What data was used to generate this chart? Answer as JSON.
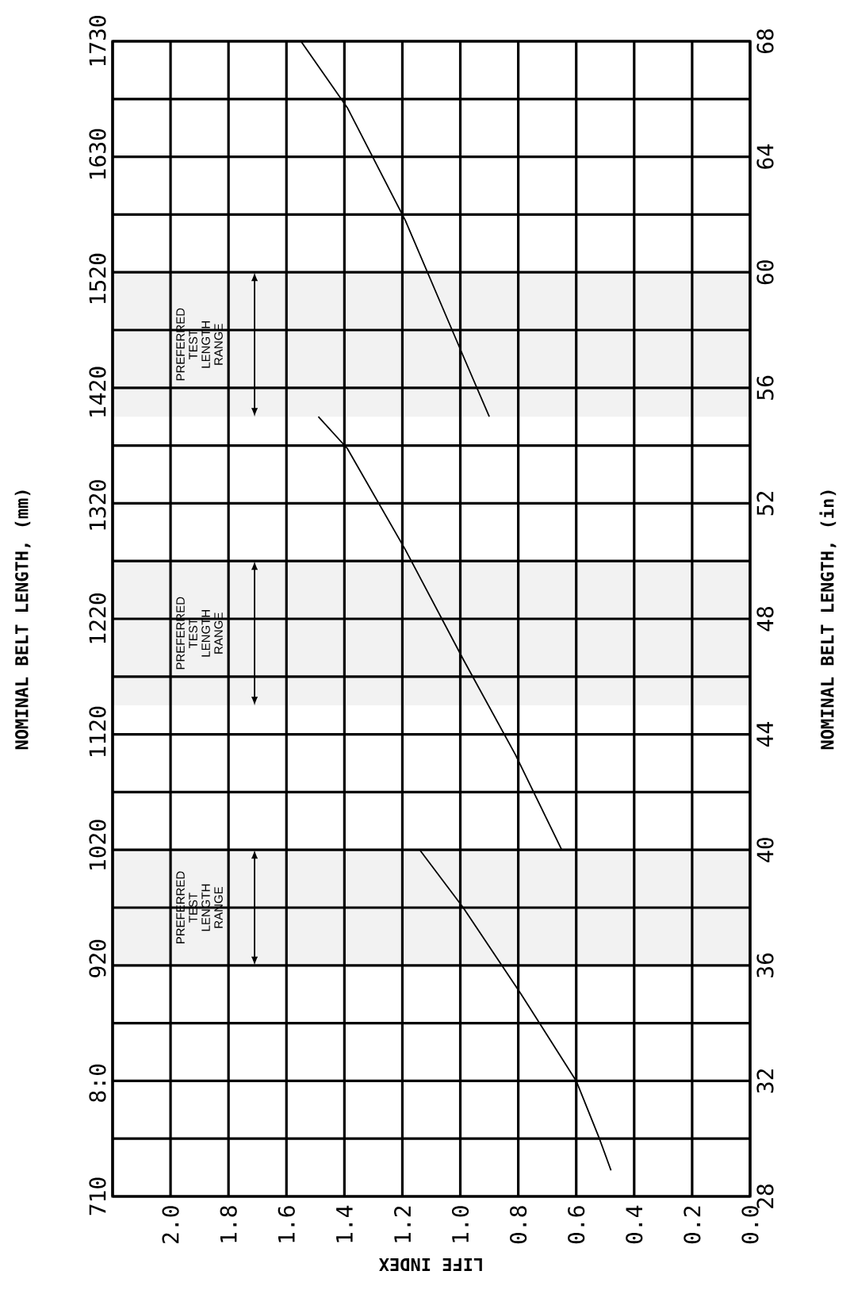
{
  "chart_data": {
    "type": "line",
    "xlabel": "LIFE INDEX",
    "ylabel": "NOMINAL BELT LENGTH, (in)",
    "y2label": "NOMINAL BELT LENGTH, (mm)",
    "xlim": [
      2.2,
      0
    ],
    "xticks": [
      {
        "value": 0,
        "label": "0.0"
      },
      {
        "value": 0.2,
        "label": "0.2"
      },
      {
        "value": 0.4,
        "label": "0.4"
      },
      {
        "value": 0.6,
        "label": "0.6"
      },
      {
        "value": 0.8,
        "label": "0.8"
      },
      {
        "value": 1,
        "label": "1.0"
      },
      {
        "value": 1.2,
        "label": "1.2"
      },
      {
        "value": 1.4,
        "label": "1.4"
      },
      {
        "value": 1.6,
        "label": "1.6"
      },
      {
        "value": 1.8,
        "label": "1.8"
      },
      {
        "value": 2,
        "label": "2.0"
      }
    ],
    "ylim": [
      28,
      68
    ],
    "yticks": [
      28,
      {
        "value": 30,
        "label": null
      },
      32,
      {
        "value": 34,
        "label": null
      },
      36,
      {
        "value": 38,
        "label": null
      },
      40,
      {
        "value": 42,
        "label": null
      },
      44,
      {
        "value": 46,
        "label": null
      },
      48,
      {
        "value": 50,
        "label": null
      },
      52,
      {
        "value": 54,
        "label": null
      },
      56,
      {
        "value": 58,
        "label": null
      },
      60,
      {
        "value": 62,
        "label": null
      },
      64,
      {
        "value": 66,
        "label": null
      },
      68
    ],
    "y2lim": [
      710,
      1730
    ],
    "y2ticks": [
      710,
      {
        "value": 810,
        "label": "8:0"
      },
      920,
      1020,
      1120,
      1220,
      1320,
      1420,
      1520,
      1630,
      1730
    ],
    "grid": true,
    "marker": "none",
    "line_style": "solid",
    "series": [
      {
        "color": "#000000",
        "x": [
          0.48,
          0.52,
          0.6,
          0.79,
          0.99,
          1.14
        ],
        "values": [
          28.9,
          30,
          32,
          35,
          38,
          40
        ]
      },
      {
        "color": "#000000",
        "x": [
          0.65,
          0.81,
          0.99,
          1.19,
          1.39,
          1.49
        ],
        "values": [
          40,
          43.3,
          46.6,
          50.4,
          53.9,
          55
        ]
      },
      {
        "color": "#000000",
        "x": [
          0.9,
          0.99,
          1.19,
          1.39,
          1.55
        ],
        "values": [
          55,
          57.1,
          61.8,
          65.7,
          68
        ]
      }
    ],
    "bands": [
      {
        "axis": "y",
        "from": 36,
        "to": 40,
        "label": "PREFERRED TEST LENGTH RANGE",
        "color": "#f2f2f2"
      },
      {
        "axis": "y",
        "from": 45,
        "to": 50,
        "label": "PREFERRED TEST LENGTH RANGE",
        "color": "#f2f2f2"
      },
      {
        "axis": "y",
        "from": 55,
        "to": 60,
        "label": "PREFERRED TEST LENGTH RANGE",
        "color": "#f2f2f2"
      }
    ]
  }
}
